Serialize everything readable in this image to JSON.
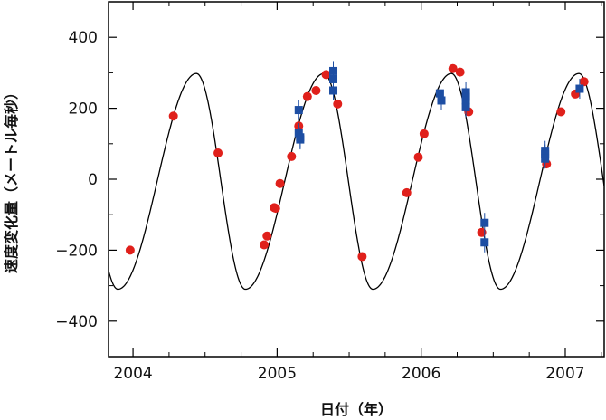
{
  "chart_data": {
    "type": "scatter",
    "title": "",
    "xlabel": "日付（年）",
    "ylabel": "速度変化量（メートル毎秒）",
    "xlim": [
      2003.83,
      2007.27
    ],
    "ylim": [
      -500,
      500
    ],
    "x_ticks": [
      2004,
      2005,
      2006,
      2007
    ],
    "x_tick_labels": [
      "2004",
      "2005",
      "2006",
      "2007"
    ],
    "y_ticks": [
      -400,
      -200,
      0,
      200,
      400
    ],
    "y_tick_labels": [
      "−400",
      "−200",
      "0",
      "200",
      "400"
    ],
    "grid": false,
    "legend": "none",
    "model_curve": {
      "shape": "periodic fit",
      "period_years": 0.885,
      "max_at": 2004.44,
      "min_at": 2004.78,
      "max_value": 298,
      "min_value": -310,
      "color": "#000000"
    },
    "series": [
      {
        "marker": "circle",
        "color": "#e0201b",
        "points": [
          [
            2003.98,
            -200
          ],
          [
            2004.28,
            178
          ],
          [
            2004.59,
            74
          ],
          [
            2004.91,
            -185
          ],
          [
            2004.93,
            -160
          ],
          [
            2004.98,
            -80
          ],
          [
            2004.99,
            -82
          ],
          [
            2005.02,
            -12
          ],
          [
            2005.1,
            64
          ],
          [
            2005.15,
            150
          ],
          [
            2005.21,
            233
          ],
          [
            2005.27,
            250
          ],
          [
            2005.34,
            295
          ],
          [
            2005.42,
            212
          ],
          [
            2005.59,
            -218
          ],
          [
            2005.9,
            -38
          ],
          [
            2005.98,
            62
          ],
          [
            2006.02,
            128
          ],
          [
            2006.22,
            312
          ],
          [
            2006.27,
            302
          ],
          [
            2006.33,
            190
          ],
          [
            2006.42,
            -150
          ],
          [
            2006.87,
            43
          ],
          [
            2006.97,
            190
          ],
          [
            2007.07,
            240
          ],
          [
            2007.13,
            275
          ]
        ]
      },
      {
        "marker": "square",
        "color": "#1d4ea3",
        "points": [
          [
            2005.15,
            195
          ],
          [
            2005.15,
            130
          ],
          [
            2005.16,
            112
          ],
          [
            2005.16,
            118
          ],
          [
            2005.39,
            305
          ],
          [
            2005.39,
            282
          ],
          [
            2005.39,
            250
          ],
          [
            2006.13,
            242
          ],
          [
            2006.14,
            222
          ],
          [
            2006.31,
            245
          ],
          [
            2006.31,
            232
          ],
          [
            2006.31,
            222
          ],
          [
            2006.31,
            203
          ],
          [
            2006.44,
            -123
          ],
          [
            2006.44,
            -178
          ],
          [
            2006.86,
            80
          ],
          [
            2006.86,
            70
          ],
          [
            2006.86,
            58
          ],
          [
            2007.1,
            255
          ]
        ]
      }
    ]
  }
}
